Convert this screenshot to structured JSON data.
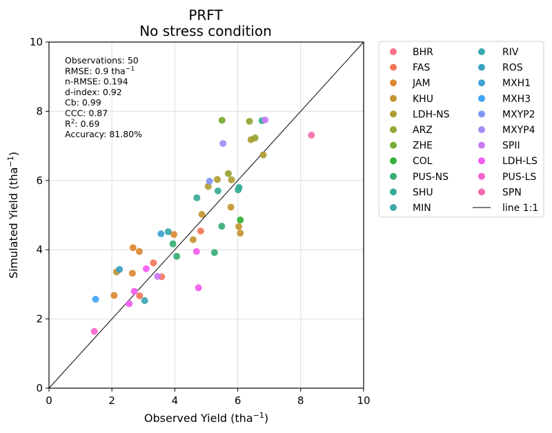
{
  "chart_data": {
    "type": "scatter",
    "title": "PRFT",
    "subtitle": "No stress condition",
    "xlabel": "Observed Yield (tha$^{-1}$)",
    "ylabel": "Simulated Yield (tha$^{-1}$)",
    "xlim": [
      0,
      10
    ],
    "ylim": [
      0,
      10
    ],
    "xticks": [
      "0",
      "2",
      "4",
      "6",
      "8",
      "10"
    ],
    "yticks": [
      "0",
      "2",
      "4",
      "6",
      "8",
      "10"
    ],
    "grid": true,
    "legend_position": "outside-right",
    "stats": [
      {
        "key": "obs",
        "text": "Observations: 50"
      },
      {
        "key": "rmse",
        "text": "RMSE: 0.9 tha",
        "sup": "−1"
      },
      {
        "key": "nrmse",
        "text": "n-RMSE: 0.194"
      },
      {
        "key": "dindex",
        "text": "d-index: 0.92"
      },
      {
        "key": "cb",
        "text": "Cb: 0.99"
      },
      {
        "key": "ccc",
        "text": "CCC: 0.87"
      },
      {
        "key": "r2",
        "text": "R",
        "sup": "2",
        "tail": ": 0.69"
      },
      {
        "key": "acc",
        "text": "Accuracy: 81.80%"
      }
    ],
    "line": {
      "name": "line 1:1",
      "x": [
        0,
        10
      ],
      "y": [
        0,
        10
      ],
      "color": "#000000"
    },
    "series": [
      {
        "name": "BHR",
        "color": "#f77189",
        "x": [],
        "y": []
      },
      {
        "name": "FAS",
        "color": "#f0775a",
        "x": [
          2.88,
          3.32,
          3.58,
          4.82
        ],
        "y": [
          2.67,
          3.62,
          3.22,
          4.54
        ]
      },
      {
        "name": "JAM",
        "color": "#dc8932",
        "x": [
          2.07,
          2.65,
          2.67,
          2.87,
          3.97
        ],
        "y": [
          2.68,
          3.32,
          4.06,
          3.95,
          4.44
        ]
      },
      {
        "name": "KHU",
        "color": "#c39532",
        "x": [
          2.15,
          4.58,
          4.86,
          5.78,
          6.03,
          6.08
        ],
        "y": [
          3.36,
          4.29,
          5.02,
          5.23,
          4.67,
          4.48
        ]
      },
      {
        "name": "LDH-NS",
        "color": "#ae9d31",
        "x": [
          5.06,
          5.35,
          5.8,
          6.42,
          6.81
        ],
        "y": [
          5.83,
          6.03,
          6.02,
          7.18,
          6.74
        ]
      },
      {
        "name": "ARZ",
        "color": "#97a431",
        "x": [
          5.7,
          6.37,
          6.55
        ],
        "y": [
          6.2,
          7.71,
          7.23
        ]
      },
      {
        "name": "ZHE",
        "color": "#77ab31",
        "x": [
          5.5
        ],
        "y": [
          7.74
        ]
      },
      {
        "name": "COL",
        "color": "#33b039",
        "x": [
          6.08
        ],
        "y": [
          4.86
        ]
      },
      {
        "name": "PUS-NS",
        "color": "#35ae73",
        "x": [
          3.94,
          4.06,
          5.26,
          5.49
        ],
        "y": [
          4.17,
          3.81,
          3.92,
          4.68
        ]
      },
      {
        "name": "SHU",
        "color": "#36ab95",
        "x": [
          4.7,
          5.37,
          6.01,
          6.04,
          6.77
        ],
        "y": [
          5.5,
          5.7,
          5.73,
          5.8,
          7.73
        ]
      },
      {
        "name": "MIN",
        "color": "#38a8a6",
        "x": [
          3.79
        ],
        "y": [
          4.52
        ]
      },
      {
        "name": "RIV",
        "color": "#39a7b2",
        "x": [
          3.04
        ],
        "y": [
          2.53
        ]
      },
      {
        "name": "ROS",
        "color": "#3ba3bf",
        "x": [
          2.24
        ],
        "y": [
          3.43
        ]
      },
      {
        "name": "MXH1",
        "color": "#3ea1d3",
        "x": [
          3.56
        ],
        "y": [
          4.46
        ]
      },
      {
        "name": "MXH3",
        "color": "#42a5f4",
        "x": [
          1.48
        ],
        "y": [
          2.57
        ]
      },
      {
        "name": "MXYP2",
        "color": "#8197f4",
        "x": [
          5.1
        ],
        "y": [
          5.98
        ]
      },
      {
        "name": "MXYP4",
        "color": "#a48cf4",
        "x": [
          5.53
        ],
        "y": [
          7.07
        ]
      },
      {
        "name": "SPII",
        "color": "#cc7af4",
        "x": [
          3.45,
          6.87
        ],
        "y": [
          3.23,
          7.75
        ]
      },
      {
        "name": "LDH-LS",
        "color": "#f45cf2",
        "x": [
          2.55,
          2.71,
          3.09,
          4.69,
          4.75
        ],
        "y": [
          2.44,
          2.8,
          3.45,
          3.95,
          2.9
        ]
      },
      {
        "name": "PUS-LS",
        "color": "#f565cc",
        "x": [
          1.44
        ],
        "y": [
          1.64
        ]
      },
      {
        "name": "SPN",
        "color": "#f66bad",
        "x": [
          8.34
        ],
        "y": [
          7.31
        ]
      }
    ]
  }
}
